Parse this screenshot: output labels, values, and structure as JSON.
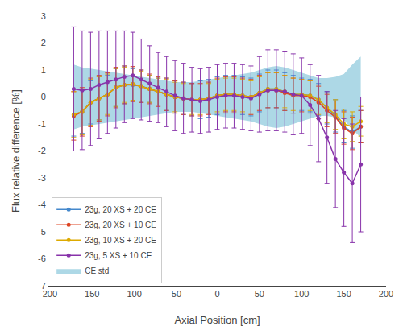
{
  "chart_data": {
    "type": "line",
    "xlabel": "Axial Position [cm]",
    "ylabel": "Flux relative difference [%]",
    "x": [
      -170,
      -160,
      -150,
      -140,
      -130,
      -120,
      -110,
      -100,
      -90,
      -80,
      -70,
      -60,
      -50,
      -40,
      -30,
      -20,
      -10,
      0,
      10,
      20,
      30,
      40,
      50,
      60,
      70,
      80,
      90,
      100,
      110,
      120,
      130,
      140,
      150,
      160,
      170
    ],
    "series": [
      {
        "name": "23g, 20 XS + 20 CE",
        "color": "#4488cc",
        "marker": "circle",
        "line_style": "solid",
        "values": [
          -0.65,
          -0.55,
          -0.2,
          -0.05,
          0.1,
          0.35,
          0.45,
          0.45,
          0.4,
          0.3,
          0.2,
          0.1,
          0.0,
          -0.05,
          -0.1,
          -0.1,
          -0.05,
          0.05,
          0.1,
          0.1,
          0.05,
          0.0,
          0.15,
          0.3,
          0.3,
          0.2,
          0.1,
          0.1,
          0.05,
          -0.1,
          -0.4,
          -0.7,
          -1.1,
          -1.3,
          -1.1
        ],
        "errors": [
          0.8,
          0.8,
          0.8,
          0.8,
          0.7,
          0.7,
          0.7,
          0.6,
          0.6,
          0.5,
          0.5,
          0.6,
          0.6,
          0.6,
          0.6,
          0.7,
          0.7,
          0.7,
          0.7,
          0.7,
          0.7,
          0.7,
          0.7,
          0.7,
          0.7,
          0.7,
          0.7,
          0.6,
          0.6,
          0.6,
          0.6,
          0.6,
          0.6,
          0.6,
          0.6
        ]
      },
      {
        "name": "23g, 20 XS + 10 CE",
        "color": "#dd4422",
        "marker": "circle",
        "line_style": "solid",
        "values": [
          -0.7,
          -0.55,
          -0.2,
          -0.05,
          0.1,
          0.35,
          0.45,
          0.48,
          0.4,
          0.3,
          0.2,
          0.1,
          0.0,
          -0.05,
          -0.1,
          -0.1,
          -0.05,
          0.05,
          0.1,
          0.1,
          0.05,
          0.0,
          0.15,
          0.25,
          0.25,
          0.15,
          0.05,
          0.05,
          0.0,
          -0.2,
          -0.5,
          -0.75,
          -1.15,
          -1.35,
          -1.1
        ],
        "errors": [
          0.9,
          0.9,
          0.9,
          0.85,
          0.8,
          0.75,
          0.7,
          0.65,
          0.6,
          0.55,
          0.55,
          0.6,
          0.6,
          0.6,
          0.6,
          0.6,
          0.6,
          0.65,
          0.65,
          0.65,
          0.65,
          0.65,
          0.65,
          0.65,
          0.65,
          0.65,
          0.65,
          0.6,
          0.6,
          0.6,
          0.6,
          0.6,
          0.6,
          0.6,
          0.6
        ]
      },
      {
        "name": "23g, 10 XS + 20 CE",
        "color": "#ddaa00",
        "marker": "circle",
        "line_style": "solid",
        "values": [
          -0.65,
          -0.55,
          -0.2,
          -0.05,
          0.1,
          0.35,
          0.45,
          0.48,
          0.4,
          0.3,
          0.2,
          0.1,
          0.0,
          -0.05,
          -0.1,
          -0.1,
          -0.05,
          0.05,
          0.1,
          0.1,
          0.05,
          0.0,
          0.15,
          0.3,
          0.3,
          0.2,
          0.1,
          0.1,
          0.05,
          -0.1,
          -0.4,
          -0.65,
          -1.0,
          -1.1,
          -0.9
        ],
        "errors": [
          0.85,
          0.85,
          0.85,
          0.8,
          0.75,
          0.7,
          0.65,
          0.6,
          0.55,
          0.5,
          0.5,
          0.55,
          0.55,
          0.55,
          0.55,
          0.55,
          0.55,
          0.6,
          0.6,
          0.6,
          0.6,
          0.6,
          0.6,
          0.6,
          0.6,
          0.6,
          0.6,
          0.55,
          0.55,
          0.55,
          0.55,
          0.55,
          0.55,
          0.55,
          0.55
        ]
      },
      {
        "name": "23g, 5 XS + 10 CE",
        "color": "#8833aa",
        "marker": "circle",
        "line_style": "solid",
        "values": [
          0.3,
          0.25,
          0.3,
          0.45,
          0.55,
          0.65,
          0.75,
          0.8,
          0.65,
          0.5,
          0.35,
          0.2,
          0.05,
          -0.05,
          -0.1,
          -0.15,
          -0.1,
          0.0,
          0.05,
          0.05,
          0.0,
          -0.05,
          0.1,
          0.25,
          0.25,
          0.2,
          0.1,
          0.05,
          -0.3,
          -0.8,
          -1.5,
          -2.3,
          -2.8,
          -3.2,
          -2.5
        ],
        "errors": [
          2.3,
          2.2,
          2.1,
          2.0,
          1.9,
          1.8,
          1.7,
          1.6,
          1.5,
          1.4,
          1.3,
          1.3,
          1.3,
          1.3,
          1.2,
          1.2,
          1.2,
          1.2,
          1.2,
          1.2,
          1.2,
          1.2,
          1.4,
          1.5,
          1.5,
          1.5,
          1.5,
          1.4,
          1.5,
          1.6,
          1.7,
          1.8,
          2.0,
          2.2,
          2.5
        ]
      },
      {
        "name": "CE std",
        "type": "band",
        "color": "#add8e6",
        "upper": [
          1.2,
          1.1,
          1.05,
          1.0,
          0.95,
          0.9,
          0.85,
          0.8,
          0.75,
          0.7,
          0.65,
          0.6,
          0.55,
          0.55,
          0.55,
          0.6,
          0.65,
          0.7,
          0.75,
          0.8,
          0.85,
          0.9,
          1.0,
          1.1,
          1.15,
          1.1,
          1.0,
          0.9,
          0.8,
          0.7,
          0.7,
          0.75,
          0.85,
          1.2,
          1.5
        ],
        "lower": [
          -1.2,
          -1.1,
          -1.05,
          -1.0,
          -0.95,
          -0.9,
          -0.85,
          -0.8,
          -0.75,
          -0.7,
          -0.65,
          -0.6,
          -0.55,
          -0.55,
          -0.55,
          -0.6,
          -0.65,
          -0.7,
          -0.75,
          -0.8,
          -0.85,
          -0.9,
          -1.0,
          -1.1,
          -1.15,
          -1.1,
          -1.0,
          -0.9,
          -0.8,
          -0.7,
          -0.7,
          -0.75,
          -0.85,
          -1.2,
          -1.5
        ]
      }
    ],
    "hline": {
      "value": 0,
      "color": "#888888",
      "line_style": "dashed"
    },
    "xlim": [
      -200,
      200
    ],
    "ylim": [
      -7,
      3
    ],
    "xticks": [
      -200,
      -150,
      -100,
      -50,
      0,
      50,
      100,
      150,
      200
    ],
    "yticks": [
      -7,
      -6,
      -5,
      -4,
      -3,
      -2,
      -1,
      0,
      1,
      2,
      3
    ],
    "grid": false,
    "legend": "lower left"
  }
}
